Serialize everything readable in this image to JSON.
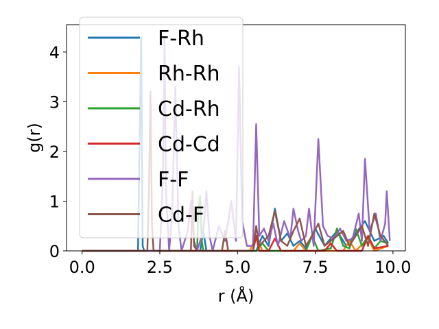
{
  "chart_data": {
    "type": "line",
    "title": "",
    "xlabel": "r (Å)",
    "ylabel": "g(r)",
    "xlim": [
      -0.5,
      10.4
    ],
    "ylim": [
      0,
      4.55
    ],
    "xticks": [
      "0.0",
      "2.5",
      "5.0",
      "7.5",
      "10.0"
    ],
    "xtick_values": [
      0,
      2.5,
      5,
      7.5,
      10
    ],
    "yticks": [
      "0",
      "1",
      "2",
      "3",
      "4"
    ],
    "ytick_values": [
      0,
      1,
      2,
      3,
      4
    ],
    "grid": false,
    "legend_position": "top-left",
    "series": [
      {
        "name": "F-Rh",
        "color": "#1f77b4",
        "points": [
          [
            0,
            0
          ],
          [
            1.8,
            0
          ],
          [
            1.85,
            2.2
          ],
          [
            1.9,
            4.3
          ],
          [
            1.95,
            0.1
          ],
          [
            2.0,
            0
          ],
          [
            3.8,
            0
          ],
          [
            3.9,
            0.4
          ],
          [
            4.0,
            0
          ],
          [
            5.6,
            0
          ],
          [
            5.8,
            0.3
          ],
          [
            6.0,
            0.1
          ],
          [
            6.2,
            0.85
          ],
          [
            6.4,
            0.2
          ],
          [
            6.6,
            0.35
          ],
          [
            6.8,
            0.1
          ],
          [
            7.0,
            0.2
          ],
          [
            7.2,
            0.05
          ],
          [
            7.5,
            0.45
          ],
          [
            7.8,
            0.1
          ],
          [
            8.2,
            0.4
          ],
          [
            8.5,
            0.1
          ],
          [
            8.8,
            0.35
          ],
          [
            9.1,
            0.6
          ],
          [
            9.4,
            0.2
          ],
          [
            9.7,
            0.3
          ],
          [
            9.85,
            0.15
          ]
        ]
      },
      {
        "name": "Rh-Rh",
        "color": "#ff7f0e",
        "points": [
          [
            0,
            0
          ],
          [
            5.0,
            0
          ],
          [
            5.4,
            0
          ],
          [
            5.6,
            0.3
          ],
          [
            5.8,
            0
          ],
          [
            6.8,
            0
          ],
          [
            7.0,
            0.15
          ],
          [
            7.2,
            0
          ],
          [
            8.4,
            0
          ],
          [
            8.6,
            0.2
          ],
          [
            8.8,
            0
          ],
          [
            9.2,
            0.25
          ],
          [
            9.4,
            0
          ],
          [
            9.85,
            0.1
          ]
        ]
      },
      {
        "name": "Cd-Rh",
        "color": "#2ca02c",
        "points": [
          [
            0,
            0
          ],
          [
            3.7,
            0
          ],
          [
            3.75,
            0.9
          ],
          [
            3.8,
            1.1
          ],
          [
            3.85,
            0.2
          ],
          [
            3.9,
            0
          ],
          [
            5.6,
            0
          ],
          [
            5.8,
            0.15
          ],
          [
            6.0,
            0
          ],
          [
            7.2,
            0
          ],
          [
            7.4,
            0.3
          ],
          [
            7.6,
            0
          ],
          [
            8.0,
            0.05
          ],
          [
            8.2,
            0.45
          ],
          [
            8.4,
            0.1
          ],
          [
            8.6,
            0.05
          ],
          [
            8.8,
            0.45
          ],
          [
            9.0,
            0.1
          ],
          [
            9.2,
            0.3
          ],
          [
            9.4,
            0.05
          ],
          [
            9.6,
            0.2
          ],
          [
            9.85,
            0.15
          ]
        ]
      },
      {
        "name": "Cd-Cd",
        "color": "#d62728",
        "points": [
          [
            0,
            0
          ],
          [
            5.5,
            0
          ],
          [
            5.6,
            0.3
          ],
          [
            5.7,
            0
          ],
          [
            6.0,
            0
          ],
          [
            6.2,
            0.25
          ],
          [
            6.4,
            0
          ],
          [
            7.8,
            0
          ],
          [
            8.0,
            0.15
          ],
          [
            8.2,
            0
          ],
          [
            9.0,
            0
          ],
          [
            9.2,
            0.3
          ],
          [
            9.4,
            0.05
          ],
          [
            9.85,
            0.1
          ]
        ]
      },
      {
        "name": "F-F",
        "color": "#9467bd",
        "points": [
          [
            0,
            0
          ],
          [
            2.5,
            0
          ],
          [
            2.6,
            1.5
          ],
          [
            2.65,
            4.3
          ],
          [
            2.7,
            1.2
          ],
          [
            2.8,
            0
          ],
          [
            2.9,
            0.8
          ],
          [
            3.0,
            3.3
          ],
          [
            3.1,
            0.5
          ],
          [
            3.2,
            0
          ],
          [
            3.4,
            0.4
          ],
          [
            3.5,
            1.0
          ],
          [
            3.6,
            0.2
          ],
          [
            3.7,
            0
          ],
          [
            3.9,
            0.4
          ],
          [
            4.0,
            1.2
          ],
          [
            4.1,
            0.3
          ],
          [
            4.2,
            0
          ],
          [
            4.4,
            0.5
          ],
          [
            4.6,
            0.2
          ],
          [
            4.8,
            1.0
          ],
          [
            4.95,
            0.2
          ],
          [
            5.05,
            3.7
          ],
          [
            5.15,
            0.6
          ],
          [
            5.3,
            0.1
          ],
          [
            5.5,
            0.1
          ],
          [
            5.6,
            2.55
          ],
          [
            5.7,
            0.3
          ],
          [
            5.85,
            0.45
          ],
          [
            6.0,
            0.2
          ],
          [
            6.15,
            0.55
          ],
          [
            6.3,
            0.1
          ],
          [
            6.5,
            0.6
          ],
          [
            6.7,
            0.25
          ],
          [
            6.8,
            0.85
          ],
          [
            6.95,
            0.4
          ],
          [
            7.05,
            0.2
          ],
          [
            7.2,
            0.3
          ],
          [
            7.3,
            0.85
          ],
          [
            7.45,
            0.1
          ],
          [
            7.6,
            2.25
          ],
          [
            7.75,
            0.5
          ],
          [
            7.9,
            0.3
          ],
          [
            8.1,
            0.25
          ],
          [
            8.3,
            0.45
          ],
          [
            8.5,
            0.2
          ],
          [
            8.7,
            0.25
          ],
          [
            8.9,
            0.75
          ],
          [
            9.0,
            0.2
          ],
          [
            9.1,
            1.85
          ],
          [
            9.25,
            0.4
          ],
          [
            9.45,
            0.75
          ],
          [
            9.6,
            0.2
          ],
          [
            9.75,
            0.55
          ],
          [
            9.8,
            1.2
          ],
          [
            9.9,
            0.2
          ]
        ]
      },
      {
        "name": "Cd-F",
        "color": "#8c564b",
        "points": [
          [
            0,
            0
          ],
          [
            2.1,
            0
          ],
          [
            2.15,
            1.2
          ],
          [
            2.2,
            3.2
          ],
          [
            2.25,
            0.5
          ],
          [
            2.3,
            0
          ],
          [
            3.5,
            0
          ],
          [
            3.55,
            1.2
          ],
          [
            3.6,
            0.1
          ],
          [
            3.7,
            0
          ],
          [
            4.5,
            0
          ],
          [
            4.6,
            0.4
          ],
          [
            4.7,
            0
          ],
          [
            5.5,
            0
          ],
          [
            5.6,
            0.5
          ],
          [
            5.7,
            0.1
          ],
          [
            6.0,
            0.3
          ],
          [
            6.2,
            0.8
          ],
          [
            6.4,
            0.2
          ],
          [
            6.6,
            0.1
          ],
          [
            6.8,
            0.4
          ],
          [
            7.0,
            0.65
          ],
          [
            7.2,
            0.1
          ],
          [
            7.4,
            0.3
          ],
          [
            7.6,
            0.55
          ],
          [
            7.8,
            0.1
          ],
          [
            8.0,
            0.2
          ],
          [
            8.4,
            0.4
          ],
          [
            8.6,
            0.1
          ],
          [
            8.8,
            0.3
          ],
          [
            9.0,
            0.5
          ],
          [
            9.2,
            0.1
          ],
          [
            9.4,
            0.75
          ],
          [
            9.6,
            0.3
          ],
          [
            9.85,
            0.1
          ]
        ]
      }
    ]
  }
}
